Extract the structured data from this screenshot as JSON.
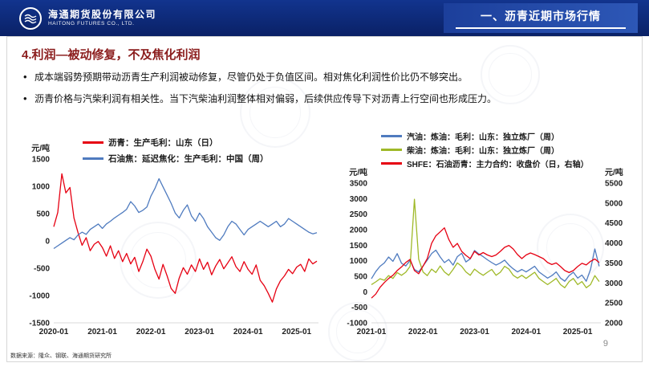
{
  "header": {
    "company_cn": "海通期货股份有限公司",
    "company_en": "HAITONG FUTURES CO., LTD.",
    "section_title": "一、沥青近期市场行情"
  },
  "slide": {
    "title": "4.利润—被动修复，不及焦化利润",
    "bullets": [
      "成本端弱势预期带动沥青生产利润被动修复，尽管仍处于负值区间。相对焦化利润性价比仍不够突出。",
      "沥青价格与汽柴利润有相关性。当下汽柴油利润整体相对偏弱，后续供应传导下对沥青上行空间也形成压力。"
    ],
    "source": "数据来源：隆众、钢联、海通期货研究所",
    "page_number": "9"
  },
  "colors": {
    "red": "#e60012",
    "blue": "#4f7bbf",
    "green": "#9fb928",
    "header_navy": "#0a2166"
  },
  "chart_data": [
    {
      "type": "line",
      "title": "",
      "ylabel": "元/吨",
      "ylim": [
        -1500,
        1500
      ],
      "yticks": [
        1500,
        1000,
        500,
        0,
        -500,
        -1000,
        -1500
      ],
      "xlim": [
        2020.0,
        2025.45
      ],
      "xticks": [
        2020,
        2021,
        2022,
        2023,
        2024,
        2025
      ],
      "xtick_labels": [
        "2020-01",
        "2021-01",
        "2022-01",
        "2023-01",
        "2024-01",
        "2025-01"
      ],
      "x_start": 2020.0,
      "x_step": 0.083333,
      "grid": false,
      "legend_position": "top",
      "series": [
        {
          "name": "沥青：生产毛利：山东（日）",
          "color": "#e60012",
          "axis": "left",
          "values": [
            260,
            520,
            1230,
            880,
            980,
            420,
            150,
            -80,
            60,
            -180,
            -60,
            -10,
            -120,
            -280,
            -90,
            -320,
            -180,
            -380,
            -230,
            -420,
            -300,
            -560,
            -380,
            -150,
            -280,
            -520,
            -700,
            -430,
            -640,
            -870,
            -960,
            -680,
            -490,
            -610,
            -440,
            -560,
            -330,
            -520,
            -390,
            -620,
            -460,
            -340,
            -510,
            -400,
            -290,
            -470,
            -560,
            -380,
            -520,
            -610,
            -440,
            -720,
            -820,
            -960,
            -1120,
            -880,
            -730,
            -640,
            -520,
            -600,
            -480,
            -430,
            -560,
            -330,
            -420,
            -370
          ]
        },
        {
          "name": "石油焦：延迟焦化：生产毛利：中国（周）",
          "color": "#4f7bbf",
          "axis": "left",
          "values": [
            -140,
            -90,
            -40,
            10,
            60,
            20,
            110,
            160,
            120,
            210,
            260,
            310,
            230,
            310,
            360,
            420,
            470,
            520,
            580,
            720,
            640,
            520,
            560,
            620,
            820,
            960,
            1140,
            990,
            840,
            690,
            510,
            420,
            560,
            660,
            460,
            360,
            510,
            410,
            260,
            160,
            60,
            10,
            110,
            260,
            360,
            310,
            210,
            110,
            210,
            260,
            310,
            360,
            310,
            260,
            310,
            360,
            260,
            310,
            410,
            360,
            310,
            260,
            210,
            160,
            130,
            150
          ]
        }
      ]
    },
    {
      "type": "line",
      "title": "",
      "ylabel_left": "元/吨",
      "ylabel_right": "元/吨",
      "ylim": [
        -1000,
        3500
      ],
      "yticks": [
        3500,
        3000,
        2500,
        2000,
        1500,
        1000,
        500,
        0,
        -500,
        -1000
      ],
      "ylim_right": [
        2000,
        5500
      ],
      "yticks_right": [
        5500,
        5000,
        4500,
        4000,
        3500,
        3000,
        2500,
        2000
      ],
      "xlim": [
        2021.0,
        2025.45
      ],
      "xticks": [
        2021,
        2022,
        2023,
        2024,
        2025
      ],
      "xtick_labels": [
        "2021-01",
        "2022-01",
        "2023-01",
        "2024-01",
        "2025-01"
      ],
      "x_start": 2021.0,
      "x_step": 0.083333,
      "grid": false,
      "legend_position": "top",
      "series": [
        {
          "name": "汽油：炼油：毛利：山东：独立炼厂（周）",
          "color": "#4f7bbf",
          "axis": "left",
          "values": [
            420,
            650,
            820,
            930,
            1120,
            980,
            1230,
            920,
            830,
            1010,
            720,
            640,
            830,
            1020,
            1230,
            1340,
            1120,
            940,
            1040,
            860,
            1130,
            1240,
            960,
            1060,
            1330,
            1220,
            1130,
            1030,
            940,
            860,
            930,
            1020,
            860,
            740,
            640,
            720,
            640,
            730,
            820,
            640,
            540,
            440,
            520,
            640,
            440,
            340,
            520,
            630,
            440,
            540,
            340,
            720,
            1380,
            820
          ]
        },
        {
          "name": "柴油：炼油：毛利：山东：独立炼厂（周）",
          "color": "#9fb928",
          "axis": "left",
          "values": [
            230,
            320,
            420,
            370,
            520,
            430,
            620,
            530,
            630,
            820,
            2980,
            1050,
            640,
            520,
            730,
            620,
            830,
            640,
            530,
            720,
            930,
            820,
            640,
            530,
            730,
            620,
            530,
            630,
            720,
            530,
            630,
            820,
            730,
            530,
            440,
            530,
            430,
            530,
            630,
            430,
            330,
            230,
            330,
            430,
            230,
            130,
            330,
            430,
            230,
            330,
            130,
            230,
            520,
            330
          ]
        },
        {
          "name": "SHFE：石油沥青：主力合约：收盘价（日，右轴）",
          "color": "#e60012",
          "axis": "right",
          "values": [
            2620,
            2720,
            2890,
            3010,
            3110,
            3190,
            3310,
            3400,
            3510,
            3590,
            3310,
            3230,
            3420,
            3610,
            3990,
            4180,
            4280,
            4380,
            4090,
            3890,
            3990,
            3790,
            3690,
            3610,
            3790,
            3700,
            3760,
            3700,
            3660,
            3700,
            3790,
            3890,
            3940,
            3850,
            3710,
            3610,
            3700,
            3750,
            3710,
            3660,
            3610,
            3510,
            3460,
            3500,
            3410,
            3310,
            3260,
            3310,
            3410,
            3490,
            3450,
            3540,
            3600,
            3510
          ]
        }
      ]
    }
  ]
}
